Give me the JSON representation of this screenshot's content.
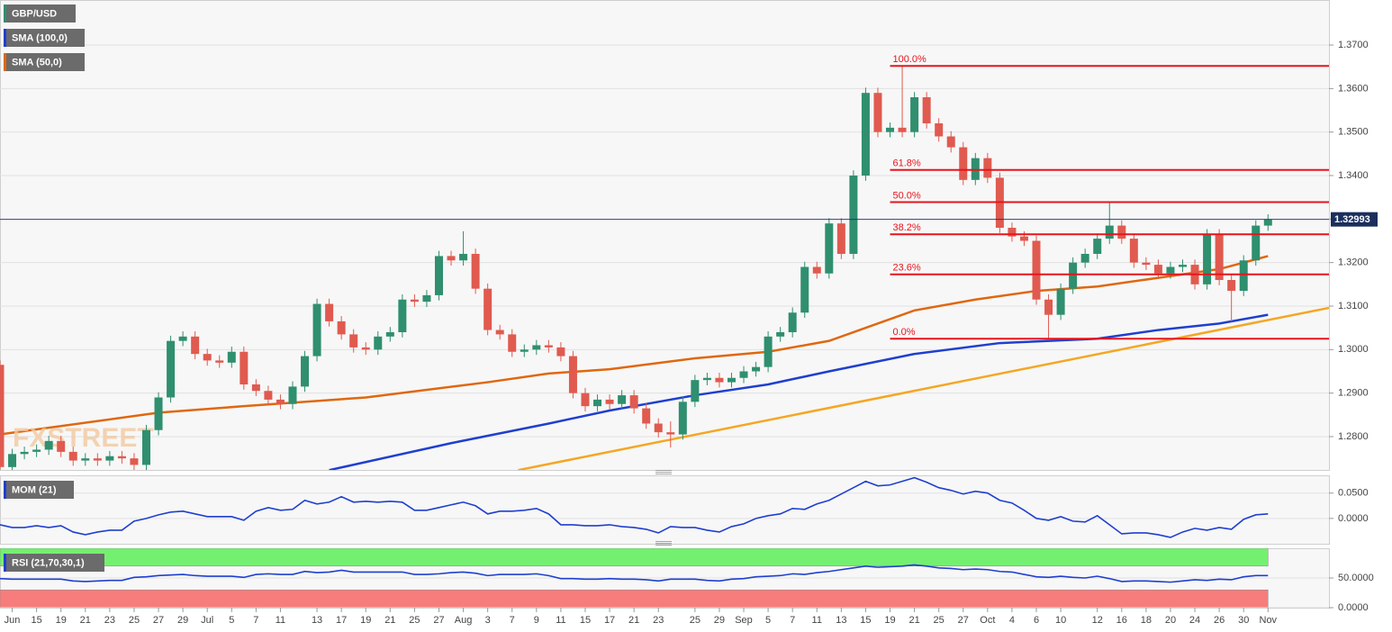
{
  "chart_data": [
    {
      "type": "candlestick",
      "symbol": "GBP/USD",
      "up_color": "#2f8f6f",
      "down_color": "#e05a4f",
      "watermark": "FXSTREET",
      "xlim": [
        0,
        109
      ],
      "ylim": [
        1.27234,
        1.38035
      ],
      "yticks": [
        {
          "value": 1.28,
          "label": "1.2800"
        },
        {
          "value": 1.29,
          "label": "1.2900"
        },
        {
          "value": 1.3,
          "label": "1.3000"
        },
        {
          "value": 1.31,
          "label": "1.3100"
        },
        {
          "value": 1.32,
          "label": "1.3200"
        },
        {
          "value": 1.33,
          "label": "1.3300"
        },
        {
          "value": 1.34,
          "label": "1.3400"
        },
        {
          "value": 1.35,
          "label": "1.3500"
        },
        {
          "value": 1.36,
          "label": "1.3600"
        },
        {
          "value": 1.37,
          "label": "1.3700"
        }
      ],
      "grid": true,
      "categories": [
        null,
        "Jun",
        null,
        "15",
        null,
        "19",
        null,
        "21",
        null,
        "23",
        null,
        "25",
        null,
        "27",
        null,
        "29",
        null,
        "Jul",
        null,
        "5",
        null,
        "7",
        null,
        "11",
        null,
        null,
        "13",
        null,
        "17",
        null,
        "19",
        null,
        "21",
        null,
        "25",
        null,
        "27",
        null,
        "Aug",
        null,
        "3",
        null,
        "7",
        null,
        "9",
        null,
        "11",
        null,
        "15",
        null,
        "17",
        null,
        "21",
        null,
        "23",
        null,
        null,
        "25",
        null,
        "29",
        null,
        "Sep",
        null,
        "5",
        null,
        "7",
        null,
        "11",
        null,
        "13",
        null,
        "15",
        null,
        "19",
        null,
        "21",
        null,
        "25",
        null,
        "27",
        null,
        "Oct",
        null,
        "4",
        null,
        "6",
        null,
        "10",
        null,
        null,
        "12",
        null,
        "16",
        null,
        "18",
        null,
        "20",
        null,
        "24",
        null,
        "26",
        null,
        "30",
        null,
        "Nov"
      ],
      "ohlc": [
        [
          1.2965,
          1.2975,
          1.2718,
          1.273
        ],
        [
          1.273,
          1.2772,
          1.2718,
          1.276
        ],
        [
          1.276,
          1.2777,
          1.2748,
          1.2765
        ],
        [
          1.2765,
          1.2782,
          1.2753,
          1.277
        ],
        [
          1.277,
          1.2802,
          1.2758,
          1.279
        ],
        [
          1.279,
          1.2802,
          1.2753,
          1.2765
        ],
        [
          1.2765,
          1.2777,
          1.2733,
          1.2745
        ],
        [
          1.2745,
          1.2762,
          1.2733,
          1.275
        ],
        [
          1.275,
          1.2762,
          1.2733,
          1.2745
        ],
        [
          1.2745,
          1.2767,
          1.2733,
          1.2755
        ],
        [
          1.2755,
          1.2767,
          1.2738,
          1.275
        ],
        [
          1.275,
          1.2762,
          1.2723,
          1.2735
        ],
        [
          1.2735,
          1.2827,
          1.2723,
          1.2815
        ],
        [
          1.2815,
          1.2902,
          1.2803,
          1.289
        ],
        [
          1.289,
          1.3032,
          1.2878,
          1.302
        ],
        [
          1.302,
          1.3042,
          1.3008,
          1.303
        ],
        [
          1.303,
          1.3042,
          1.2978,
          1.299
        ],
        [
          1.299,
          1.3002,
          1.2963,
          1.2975
        ],
        [
          1.2975,
          1.2987,
          1.2958,
          1.297
        ],
        [
          1.297,
          1.3007,
          1.2958,
          1.2995
        ],
        [
          1.2995,
          1.3007,
          1.2908,
          1.292
        ],
        [
          1.292,
          1.2932,
          1.2893,
          1.2905
        ],
        [
          1.2905,
          1.2917,
          1.2873,
          1.2885
        ],
        [
          1.2885,
          1.2897,
          1.2863,
          1.2875
        ],
        [
          1.2875,
          1.2927,
          1.2863,
          1.2915
        ],
        [
          1.2915,
          1.2997,
          1.2903,
          1.2985
        ],
        [
          1.2985,
          1.3117,
          1.2973,
          1.3105
        ],
        [
          1.3105,
          1.3117,
          1.3053,
          1.3065
        ],
        [
          1.3065,
          1.3077,
          1.3023,
          1.3035
        ],
        [
          1.3035,
          1.3047,
          1.2993,
          1.3005
        ],
        [
          1.3005,
          1.3017,
          1.2988,
          1.3
        ],
        [
          1.3,
          1.3042,
          1.2988,
          1.303
        ],
        [
          1.303,
          1.3052,
          1.3018,
          1.304
        ],
        [
          1.304,
          1.3127,
          1.3028,
          1.3115
        ],
        [
          1.3115,
          1.3127,
          1.3098,
          1.311
        ],
        [
          1.311,
          1.3137,
          1.3098,
          1.3125
        ],
        [
          1.3125,
          1.3227,
          1.3113,
          1.3215
        ],
        [
          1.3215,
          1.3227,
          1.3193,
          1.3205
        ],
        [
          1.3205,
          1.3272,
          1.3193,
          1.322
        ],
        [
          1.322,
          1.3232,
          1.3128,
          1.314
        ],
        [
          1.314,
          1.3152,
          1.3033,
          1.3045
        ],
        [
          1.3045,
          1.3057,
          1.3023,
          1.3035
        ],
        [
          1.3035,
          1.3047,
          1.2983,
          1.2995
        ],
        [
          1.2995,
          1.3012,
          1.2983,
          1.3
        ],
        [
          1.3,
          1.3022,
          1.2988,
          1.301
        ],
        [
          1.301,
          1.3022,
          1.2993,
          1.3005
        ],
        [
          1.3005,
          1.3017,
          1.2973,
          1.2985
        ],
        [
          1.2985,
          1.2997,
          1.2888,
          1.29
        ],
        [
          1.29,
          1.2912,
          1.2858,
          1.287
        ],
        [
          1.287,
          1.2897,
          1.2858,
          1.2885
        ],
        [
          1.2885,
          1.2897,
          1.2863,
          1.2875
        ],
        [
          1.2875,
          1.2907,
          1.2863,
          1.2895
        ],
        [
          1.2895,
          1.2907,
          1.2853,
          1.2865
        ],
        [
          1.2865,
          1.2877,
          1.2818,
          1.283
        ],
        [
          1.283,
          1.2842,
          1.2798,
          1.281
        ],
        [
          1.281,
          1.2835,
          1.2775,
          1.2805
        ],
        [
          1.2805,
          1.2892,
          1.2793,
          1.288
        ],
        [
          1.288,
          1.2942,
          1.2868,
          1.293
        ],
        [
          1.293,
          1.2947,
          1.2918,
          1.2935
        ],
        [
          1.2935,
          1.2947,
          1.2913,
          1.2925
        ],
        [
          1.2925,
          1.2947,
          1.2913,
          1.2935
        ],
        [
          1.2935,
          1.2962,
          1.2923,
          1.295
        ],
        [
          1.295,
          1.2972,
          1.2938,
          1.296
        ],
        [
          1.296,
          1.3042,
          1.2948,
          1.303
        ],
        [
          1.303,
          1.3052,
          1.3018,
          1.304
        ],
        [
          1.304,
          1.3097,
          1.3028,
          1.3085
        ],
        [
          1.3085,
          1.3202,
          1.3073,
          1.319
        ],
        [
          1.319,
          1.3202,
          1.3163,
          1.3175
        ],
        [
          1.3175,
          1.3302,
          1.3163,
          1.329
        ],
        [
          1.329,
          1.3302,
          1.3208,
          1.322
        ],
        [
          1.322,
          1.3412,
          1.3208,
          1.34
        ],
        [
          1.34,
          1.3602,
          1.3388,
          1.359
        ],
        [
          1.359,
          1.3602,
          1.3488,
          1.35
        ],
        [
          1.35,
          1.3522,
          1.3488,
          1.351
        ],
        [
          1.351,
          1.3652,
          1.3488,
          1.35
        ],
        [
          1.35,
          1.3592,
          1.3488,
          1.358
        ],
        [
          1.358,
          1.3592,
          1.3508,
          1.352
        ],
        [
          1.352,
          1.3532,
          1.3478,
          1.349
        ],
        [
          1.349,
          1.3502,
          1.3453,
          1.3465
        ],
        [
          1.3465,
          1.3477,
          1.3378,
          1.339
        ],
        [
          1.339,
          1.3452,
          1.3378,
          1.344
        ],
        [
          1.344,
          1.3452,
          1.3383,
          1.3395
        ],
        [
          1.3395,
          1.3407,
          1.3268,
          1.328
        ],
        [
          1.328,
          1.3292,
          1.3248,
          1.326
        ],
        [
          1.326,
          1.3272,
          1.3238,
          1.325
        ],
        [
          1.325,
          1.3262,
          1.3103,
          1.3115
        ],
        [
          1.3115,
          1.3127,
          1.3025,
          1.308
        ],
        [
          1.308,
          1.3152,
          1.3068,
          1.314
        ],
        [
          1.314,
          1.3212,
          1.3128,
          1.32
        ],
        [
          1.32,
          1.3232,
          1.3188,
          1.322
        ],
        [
          1.322,
          1.3267,
          1.3208,
          1.3255
        ],
        [
          1.3255,
          1.334,
          1.3243,
          1.3285
        ],
        [
          1.3285,
          1.3297,
          1.3243,
          1.3255
        ],
        [
          1.3255,
          1.3267,
          1.3188,
          1.32
        ],
        [
          1.32,
          1.3212,
          1.3183,
          1.3195
        ],
        [
          1.3195,
          1.3207,
          1.3163,
          1.3175
        ],
        [
          1.3175,
          1.3202,
          1.3163,
          1.319
        ],
        [
          1.319,
          1.3207,
          1.3178,
          1.3195
        ],
        [
          1.3195,
          1.3207,
          1.3138,
          1.315
        ],
        [
          1.315,
          1.3277,
          1.3138,
          1.3265
        ],
        [
          1.3265,
          1.3277,
          1.3148,
          1.316
        ],
        [
          1.316,
          1.3172,
          1.3065,
          1.3135
        ],
        [
          1.3135,
          1.3217,
          1.3123,
          1.3205
        ],
        [
          1.3205,
          1.3297,
          1.3193,
          1.3285
        ],
        [
          1.3285,
          1.3311,
          1.3273,
          1.3299
        ]
      ],
      "series": [
        {
          "name": "SMA (100,0)",
          "color": "#1f3fd0",
          "x": [
            27,
            37,
            45,
            50,
            57,
            63,
            68,
            75,
            82,
            90,
            95,
            100,
            104
          ],
          "values": [
            1.2723,
            1.2785,
            1.283,
            1.286,
            1.2895,
            1.292,
            1.295,
            1.299,
            1.3015,
            1.3025,
            1.3045,
            1.306,
            1.308
          ]
        },
        {
          "name": "SMA (50,0)",
          "color": "#e0670f",
          "x": [
            0,
            13,
            20,
            30,
            40,
            45,
            50,
            57,
            63,
            68,
            72,
            75,
            80,
            85,
            90,
            95,
            100,
            104
          ],
          "values": [
            1.2805,
            1.2855,
            1.287,
            1.289,
            1.2925,
            1.2945,
            1.2955,
            1.298,
            1.2995,
            1.302,
            1.306,
            1.309,
            1.3115,
            1.3135,
            1.3145,
            1.3165,
            1.3185,
            1.3215
          ]
        }
      ],
      "trendline": {
        "color": "#f5a623",
        "x": [
          42.5,
          109
        ],
        "values": [
          1.2723,
          1.3096
        ]
      },
      "fibonacci": {
        "color": "#e8141c",
        "start": 73,
        "levels": [
          {
            "value": 1.3652,
            "label": "100.0%"
          },
          {
            "value": 1.3413,
            "label": "61.8%"
          },
          {
            "value": 1.3339,
            "label": "50.0%"
          },
          {
            "value": 1.3265,
            "label": "38.2%"
          },
          {
            "value": 1.3173,
            "label": "23.6%"
          },
          {
            "value": 1.3025,
            "label": "0.0%"
          }
        ]
      },
      "last_price": 1.32993,
      "last_price_color": "#1b2f5e"
    },
    {
      "type": "line",
      "title": "MOM (21)",
      "color": "#1f3fd0",
      "ylim": [
        -0.05,
        0.085
      ],
      "yticks": [
        {
          "value": 0.05,
          "label": "0.0500"
        },
        {
          "value": 0,
          "label": "0.0000"
        }
      ],
      "values": [
        -0.0125,
        -0.0179,
        -0.0179,
        -0.0143,
        -0.0179,
        -0.0143,
        -0.0268,
        -0.0321,
        -0.0268,
        -0.0232,
        -0.0232,
        -0.0054,
        0,
        0.0071,
        0.0125,
        0.0143,
        0.0089,
        0.0036,
        0.0036,
        0.0036,
        -0.0036,
        0.0143,
        0.0214,
        0.0161,
        0.0179,
        0.0357,
        0.0286,
        0.0321,
        0.0429,
        0.0321,
        0.0339,
        0.0321,
        0.0339,
        0.0321,
        0.0161,
        0.0161,
        0.0214,
        0.0268,
        0.0321,
        0.025,
        0.0089,
        0.0143,
        0.0143,
        0.0161,
        0.0196,
        0.0089,
        -0.0125,
        -0.0125,
        -0.0143,
        -0.0143,
        -0.0125,
        -0.0161,
        -0.0179,
        -0.0214,
        -0.0286,
        -0.0161,
        -0.0179,
        -0.0179,
        -0.0232,
        -0.0268,
        -0.0161,
        -0.0107,
        0,
        0.0054,
        0.0089,
        0.0196,
        0.0179,
        0.0286,
        0.0357,
        0.0482,
        0.0607,
        0.0732,
        0.0643,
        0.0661,
        0.0732,
        0.0804,
        0.0714,
        0.0607,
        0.0554,
        0.0482,
        0.0536,
        0.05,
        0.0357,
        0.0304,
        0.0161,
        0,
        -0.0036,
        0.0036,
        -0.0054,
        -0.0071,
        0.0054,
        -0.0125,
        -0.0304,
        -0.0286,
        -0.0286,
        -0.0321,
        -0.0375,
        -0.0268,
        -0.0196,
        -0.0232,
        -0.0179,
        -0.0214,
        -0.0018,
        0.0071,
        0.0089
      ]
    },
    {
      "type": "line",
      "title": "RSI (21,70,30,1)",
      "color": "#1f3fd0",
      "ylim": [
        0,
        100
      ],
      "yticks": [
        {
          "value": 50,
          "label": "50.0000"
        },
        {
          "value": 0,
          "label": "0.0000"
        }
      ],
      "bands": [
        {
          "from": 70,
          "to": 100,
          "color": "#74f070"
        },
        {
          "from": 0,
          "to": 30,
          "color": "#f77c7c"
        }
      ],
      "values": [
        49,
        48,
        48,
        48,
        48,
        48,
        45,
        44,
        45,
        46,
        46,
        51,
        52,
        54,
        55,
        56,
        54,
        53,
        53,
        53,
        51,
        56,
        57,
        56,
        56,
        61,
        59,
        60,
        63,
        60,
        60,
        60,
        60,
        60,
        56,
        56,
        57,
        59,
        60,
        58,
        54,
        56,
        56,
        56,
        57,
        54,
        49,
        49,
        48,
        48,
        49,
        48,
        48,
        47,
        45,
        48,
        48,
        48,
        46,
        45,
        48,
        49,
        52,
        53,
        54,
        57,
        56,
        59,
        61,
        64,
        67,
        70,
        68,
        69,
        70,
        72,
        70,
        67,
        66,
        64,
        65,
        64,
        61,
        60,
        56,
        52,
        51,
        53,
        51,
        50,
        53,
        49,
        44,
        45,
        45,
        44,
        43,
        45,
        47,
        46,
        48,
        47,
        52,
        54,
        54
      ]
    }
  ]
}
